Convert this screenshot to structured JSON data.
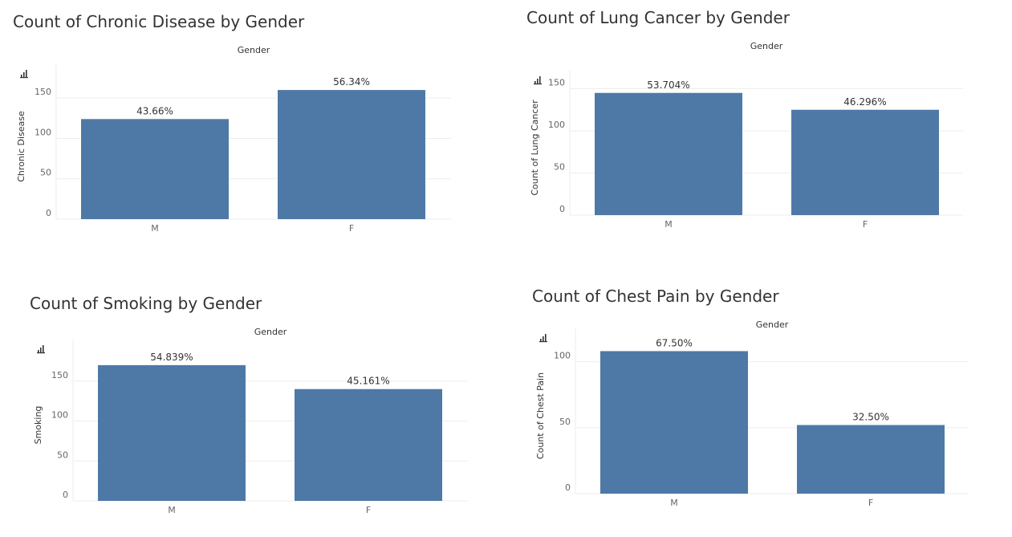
{
  "colors": {
    "bar": "#4e79a7",
    "grid": "#eeeeee",
    "axis_text": "#666666",
    "label_text": "#333333"
  },
  "chart_data": [
    {
      "type": "bar",
      "title": "Count of Chronic Disease by Gender",
      "column_header": "Gender",
      "ylabel": "Chronic Disease",
      "categories": [
        "M",
        "F"
      ],
      "values": [
        124,
        160
      ],
      "data_labels": [
        "43.66%",
        "56.34%"
      ],
      "ylim": [
        0,
        180
      ],
      "yticks": [
        0,
        50,
        100,
        150
      ],
      "grid": true
    },
    {
      "type": "bar",
      "title": "Count of Lung Cancer by Gender",
      "column_header": "Gender",
      "ylabel": "Count of Lung Cancer",
      "categories": [
        "M",
        "F"
      ],
      "values": [
        145,
        125
      ],
      "data_labels": [
        "53.704%",
        "46.296%"
      ],
      "ylim": [
        0,
        160
      ],
      "yticks": [
        0,
        50,
        100,
        150
      ],
      "grid": true
    },
    {
      "type": "bar",
      "title": "Count of Smoking by Gender",
      "column_header": "Gender",
      "ylabel": "Smoking",
      "categories": [
        "M",
        "F"
      ],
      "values": [
        170,
        140
      ],
      "data_labels": [
        "54.839%",
        "45.161%"
      ],
      "ylim": [
        0,
        190
      ],
      "yticks": [
        0,
        50,
        100,
        150
      ],
      "grid": true
    },
    {
      "type": "bar",
      "title": "Count of Chest Pain by Gender",
      "column_header": "Gender",
      "ylabel": "Count of Chest Pain",
      "categories": [
        "M",
        "F"
      ],
      "values": [
        108,
        52
      ],
      "data_labels": [
        "67.50%",
        "32.50%"
      ],
      "ylim": [
        0,
        118
      ],
      "yticks": [
        0,
        50,
        100
      ],
      "grid": true
    }
  ]
}
